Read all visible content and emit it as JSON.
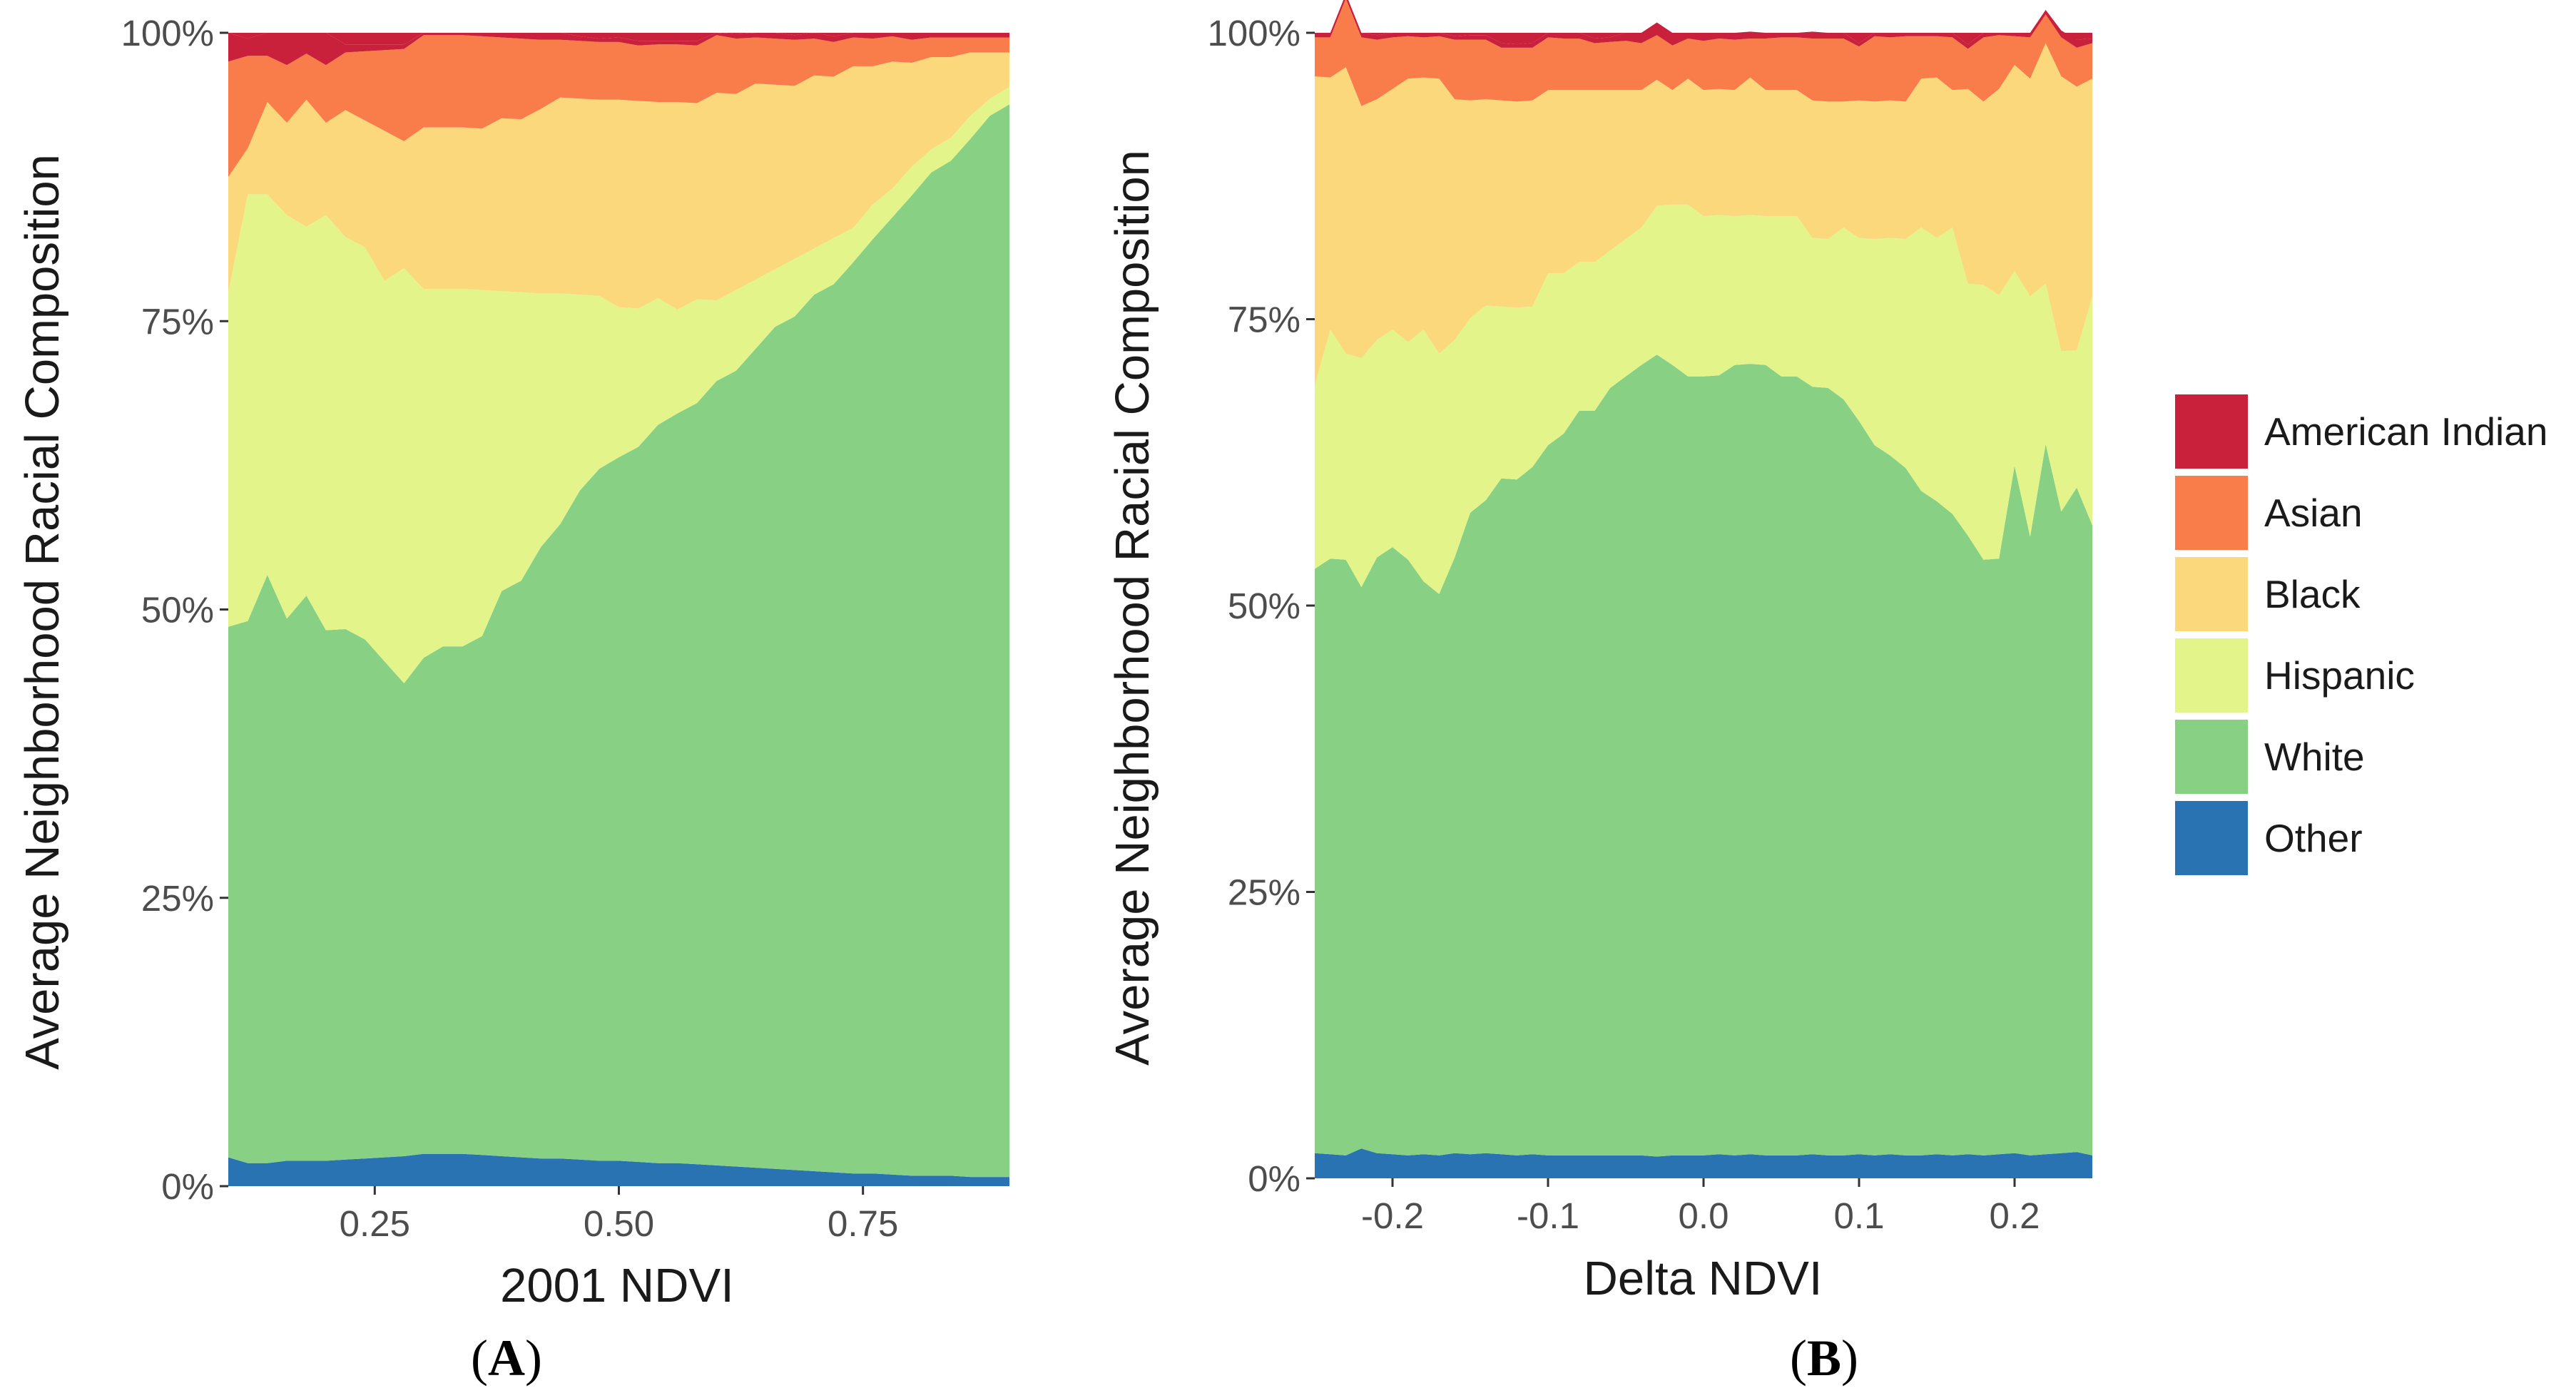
{
  "legend": [
    {
      "key": "american_indian",
      "label": "American Indian",
      "color": "#c9213b"
    },
    {
      "key": "asian",
      "label": "Asian",
      "color": "#f87d4a"
    },
    {
      "key": "black",
      "label": "Black",
      "color": "#fbd87c"
    },
    {
      "key": "hispanic",
      "label": "Hispanic",
      "color": "#e2f48a"
    },
    {
      "key": "white",
      "label": "White",
      "color": "#88d083"
    },
    {
      "key": "other",
      "label": "Other",
      "color": "#2a73b2"
    }
  ],
  "panels": [
    {
      "label": "(A)",
      "label_open": "(",
      "label_letter": "A",
      "label_close": ")"
    },
    {
      "label": "(B)",
      "label_open": "(",
      "label_letter": "B",
      "label_close": ")"
    }
  ],
  "chart_data": [
    {
      "type": "area",
      "stacked": true,
      "xlabel": "2001 NDVI",
      "ylabel": "Average Neighborhood Racial Composition",
      "xlim": [
        0.1,
        0.9
      ],
      "ylim": [
        0,
        1
      ],
      "xticks": [
        0.25,
        0.5,
        0.75
      ],
      "xtick_labels": [
        "0.25",
        "0.50",
        "0.75"
      ],
      "yticks": [
        0,
        0.25,
        0.5,
        0.75,
        1
      ],
      "ytick_labels": [
        "0%",
        "25%",
        "50%",
        "75%",
        "100%"
      ],
      "x": [
        0.1,
        0.12,
        0.14,
        0.16,
        0.18,
        0.2,
        0.22,
        0.24,
        0.26,
        0.28,
        0.3,
        0.32,
        0.34,
        0.36,
        0.38,
        0.4,
        0.42,
        0.44,
        0.46,
        0.48,
        0.5,
        0.52,
        0.54,
        0.56,
        0.58,
        0.6,
        0.62,
        0.64,
        0.66,
        0.68,
        0.7,
        0.72,
        0.74,
        0.76,
        0.78,
        0.8,
        0.82,
        0.84,
        0.86,
        0.88,
        0.9
      ],
      "series": [
        {
          "name": "Other",
          "values": [
            0.025,
            0.02,
            0.02,
            0.022,
            0.022,
            0.022,
            0.023,
            0.024,
            0.025,
            0.026,
            0.028,
            0.028,
            0.028,
            0.027,
            0.026,
            0.025,
            0.024,
            0.024,
            0.023,
            0.022,
            0.022,
            0.021,
            0.02,
            0.02,
            0.019,
            0.018,
            0.017,
            0.016,
            0.015,
            0.014,
            0.013,
            0.012,
            0.011,
            0.011,
            0.01,
            0.009,
            0.009,
            0.009,
            0.008,
            0.008,
            0.008
          ]
        },
        {
          "name": "White",
          "values": [
            0.46,
            0.47,
            0.51,
            0.47,
            0.49,
            0.46,
            0.46,
            0.45,
            0.43,
            0.41,
            0.43,
            0.44,
            0.44,
            0.45,
            0.49,
            0.5,
            0.53,
            0.55,
            0.58,
            0.6,
            0.61,
            0.62,
            0.64,
            0.65,
            0.66,
            0.68,
            0.69,
            0.71,
            0.73,
            0.74,
            0.76,
            0.77,
            0.79,
            0.81,
            0.83,
            0.85,
            0.87,
            0.88,
            0.9,
            0.92,
            0.93
          ]
        },
        {
          "name": "Hispanic",
          "values": [
            0.29,
            0.37,
            0.33,
            0.35,
            0.32,
            0.36,
            0.34,
            0.34,
            0.33,
            0.36,
            0.32,
            0.31,
            0.31,
            0.3,
            0.26,
            0.25,
            0.22,
            0.2,
            0.17,
            0.15,
            0.13,
            0.12,
            0.11,
            0.09,
            0.09,
            0.07,
            0.07,
            0.06,
            0.05,
            0.05,
            0.04,
            0.04,
            0.03,
            0.03,
            0.025,
            0.025,
            0.02,
            0.02,
            0.02,
            0.015,
            0.015
          ]
        },
        {
          "name": "Black",
          "values": [
            0.1,
            0.04,
            0.08,
            0.08,
            0.11,
            0.08,
            0.11,
            0.11,
            0.13,
            0.11,
            0.14,
            0.14,
            0.14,
            0.14,
            0.15,
            0.15,
            0.16,
            0.17,
            0.17,
            0.17,
            0.18,
            0.18,
            0.17,
            0.18,
            0.17,
            0.18,
            0.17,
            0.17,
            0.16,
            0.15,
            0.15,
            0.14,
            0.14,
            0.12,
            0.11,
            0.09,
            0.08,
            0.07,
            0.055,
            0.04,
            0.03
          ]
        },
        {
          "name": "Asian",
          "values": [
            0.1,
            0.08,
            0.04,
            0.05,
            0.04,
            0.05,
            0.05,
            0.06,
            0.07,
            0.08,
            0.08,
            0.08,
            0.08,
            0.08,
            0.07,
            0.07,
            0.06,
            0.05,
            0.05,
            0.05,
            0.05,
            0.048,
            0.05,
            0.05,
            0.05,
            0.05,
            0.048,
            0.04,
            0.04,
            0.04,
            0.032,
            0.03,
            0.025,
            0.024,
            0.022,
            0.02,
            0.017,
            0.017,
            0.013,
            0.013,
            0.013
          ]
        },
        {
          "name": "American Indian",
          "values": [
            0.025,
            0.015,
            0.02,
            0.028,
            0.018,
            0.028,
            0.007,
            0.006,
            0.005,
            0.004,
            0.002,
            0.002,
            0.002,
            0.003,
            0.004,
            0.005,
            0.006,
            0.006,
            0.004,
            0.003,
            0.004,
            0.004,
            0.003,
            0.003,
            0.004,
            0.002,
            0.004,
            0.004,
            0.005,
            0.004,
            0.005,
            0.005,
            0.004,
            0.005,
            0.003,
            0.006,
            0.004,
            0.004,
            0.004,
            0.004,
            0.004
          ]
        }
      ]
    },
    {
      "type": "area",
      "stacked": true,
      "xlabel": "Delta NDVI",
      "ylabel": "Average Neighborhood Racial Composition",
      "xlim": [
        -0.25,
        0.25
      ],
      "ylim": [
        0,
        1
      ],
      "xticks": [
        -0.2,
        -0.1,
        0.0,
        0.1,
        0.2
      ],
      "xtick_labels": [
        "-0.2",
        "-0.1",
        "0.0",
        "0.1",
        "0.2"
      ],
      "yticks": [
        0,
        0.25,
        0.5,
        0.75,
        1
      ],
      "ytick_labels": [
        "0%",
        "25%",
        "50%",
        "75%",
        "100%"
      ],
      "x": [
        -0.25,
        -0.24,
        -0.23,
        -0.22,
        -0.21,
        -0.2,
        -0.19,
        -0.18,
        -0.17,
        -0.16,
        -0.15,
        -0.14,
        -0.13,
        -0.12,
        -0.11,
        -0.1,
        -0.09,
        -0.08,
        -0.07,
        -0.06,
        -0.05,
        -0.04,
        -0.03,
        -0.02,
        -0.01,
        0.0,
        0.01,
        0.02,
        0.03,
        0.04,
        0.05,
        0.06,
        0.07,
        0.08,
        0.09,
        0.1,
        0.11,
        0.12,
        0.13,
        0.14,
        0.15,
        0.16,
        0.17,
        0.18,
        0.19,
        0.2,
        0.21,
        0.22,
        0.23,
        0.24,
        0.25
      ],
      "series": [
        {
          "name": "Other",
          "values": [
            0.022,
            0.021,
            0.02,
            0.026,
            0.022,
            0.021,
            0.02,
            0.021,
            0.02,
            0.022,
            0.021,
            0.022,
            0.021,
            0.02,
            0.021,
            0.02,
            0.02,
            0.02,
            0.02,
            0.02,
            0.02,
            0.02,
            0.019,
            0.02,
            0.02,
            0.02,
            0.021,
            0.02,
            0.021,
            0.02,
            0.02,
            0.02,
            0.021,
            0.02,
            0.02,
            0.021,
            0.02,
            0.021,
            0.02,
            0.02,
            0.021,
            0.02,
            0.021,
            0.02,
            0.021,
            0.022,
            0.02,
            0.021,
            0.022,
            0.023,
            0.02
          ]
        },
        {
          "name": "White",
          "values": [
            0.51,
            0.52,
            0.52,
            0.49,
            0.52,
            0.53,
            0.52,
            0.5,
            0.49,
            0.52,
            0.56,
            0.57,
            0.59,
            0.59,
            0.6,
            0.62,
            0.63,
            0.65,
            0.65,
            0.67,
            0.68,
            0.69,
            0.7,
            0.69,
            0.68,
            0.68,
            0.68,
            0.69,
            0.69,
            0.69,
            0.68,
            0.68,
            0.67,
            0.67,
            0.66,
            0.64,
            0.62,
            0.61,
            0.6,
            0.58,
            0.57,
            0.56,
            0.54,
            0.52,
            0.52,
            0.6,
            0.54,
            0.62,
            0.56,
            0.58,
            0.55
          ]
        },
        {
          "name": "Hispanic",
          "values": [
            0.16,
            0.2,
            0.18,
            0.2,
            0.19,
            0.19,
            0.19,
            0.22,
            0.21,
            0.19,
            0.17,
            0.17,
            0.15,
            0.15,
            0.14,
            0.15,
            0.14,
            0.13,
            0.13,
            0.12,
            0.12,
            0.12,
            0.13,
            0.14,
            0.15,
            0.14,
            0.14,
            0.13,
            0.13,
            0.13,
            0.14,
            0.14,
            0.13,
            0.13,
            0.15,
            0.16,
            0.18,
            0.19,
            0.2,
            0.23,
            0.23,
            0.25,
            0.22,
            0.24,
            0.23,
            0.17,
            0.21,
            0.14,
            0.14,
            0.12,
            0.2
          ]
        },
        {
          "name": "Black",
          "values": [
            0.27,
            0.22,
            0.25,
            0.22,
            0.21,
            0.21,
            0.23,
            0.22,
            0.24,
            0.21,
            0.19,
            0.18,
            0.18,
            0.18,
            0.18,
            0.16,
            0.16,
            0.15,
            0.15,
            0.14,
            0.13,
            0.12,
            0.11,
            0.1,
            0.11,
            0.11,
            0.11,
            0.11,
            0.12,
            0.11,
            0.11,
            0.11,
            0.12,
            0.12,
            0.11,
            0.12,
            0.12,
            0.12,
            0.12,
            0.13,
            0.14,
            0.12,
            0.17,
            0.16,
            0.18,
            0.18,
            0.19,
            0.21,
            0.24,
            0.23,
            0.19
          ]
        },
        {
          "name": "Asian",
          "values": [
            0.034,
            0.035,
            0.06,
            0.06,
            0.052,
            0.045,
            0.037,
            0.035,
            0.037,
            0.052,
            0.053,
            0.052,
            0.046,
            0.047,
            0.046,
            0.046,
            0.045,
            0.045,
            0.041,
            0.042,
            0.043,
            0.041,
            0.039,
            0.039,
            0.035,
            0.043,
            0.044,
            0.044,
            0.034,
            0.045,
            0.046,
            0.046,
            0.054,
            0.055,
            0.055,
            0.047,
            0.057,
            0.055,
            0.057,
            0.037,
            0.036,
            0.046,
            0.035,
            0.056,
            0.047,
            0.025,
            0.036,
            0.025,
            0.034,
            0.034,
            0.031
          ]
        },
        {
          "name": "American Indian",
          "values": [
            0.004,
            0.004,
            0.004,
            0.004,
            0.004,
            0.004,
            0.003,
            0.004,
            0.003,
            0.003,
            0.004,
            0.004,
            0.004,
            0.003,
            0.004,
            0.004,
            0.005,
            0.005,
            0.004,
            0.004,
            0.007,
            0.009,
            0.011,
            0.011,
            0.005,
            0.007,
            0.005,
            0.006,
            0.006,
            0.005,
            0.004,
            0.004,
            0.006,
            0.005,
            0.005,
            0.003,
            0.003,
            0.004,
            0.003,
            0.003,
            0.003,
            0.004,
            0.004,
            0.004,
            0.002,
            0.003,
            0.004,
            0.004,
            0.006,
            0.007,
            0.004
          ]
        }
      ]
    }
  ]
}
